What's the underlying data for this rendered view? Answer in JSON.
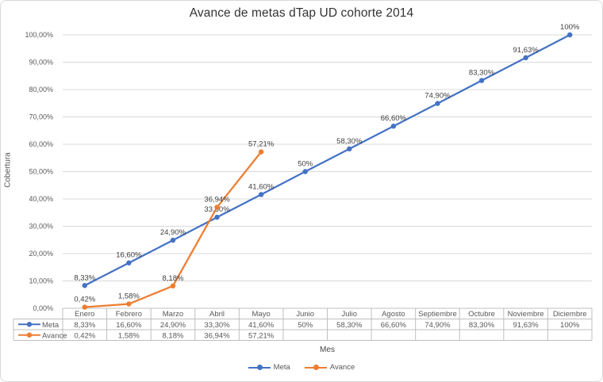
{
  "chart_data": {
    "type": "line",
    "title": "Avance de metas dTap UD cohorte 2014",
    "xlabel": "Mes",
    "ylabel": "Cobertura",
    "ylim": [
      0,
      100
    ],
    "ytick_step": 10,
    "ytick_labels": [
      "0,00%",
      "10,00%",
      "20,00%",
      "30,00%",
      "40,00%",
      "50,00%",
      "60,00%",
      "70,00%",
      "80,00%",
      "90,00%",
      "100,00%"
    ],
    "grid": true,
    "legend_position": "bottom",
    "data_table_shown": true,
    "categories": [
      "Enero",
      "Febrero",
      "Marzo",
      "Abril",
      "Mayo",
      "Junio",
      "Julio",
      "Agosto",
      "Septiembre",
      "Octubre",
      "Noviembre",
      "Diciembre"
    ],
    "series": [
      {
        "name": "Meta",
        "color": "#4472C4",
        "values": [
          8.33,
          16.6,
          24.9,
          33.3,
          41.6,
          50,
          58.3,
          66.6,
          74.9,
          83.3,
          91.63,
          100
        ],
        "labels": [
          "8,33%",
          "16,60%",
          "24,90%",
          "33,30%",
          "41,60%",
          "50%",
          "58,30%",
          "66,60%",
          "74,90%",
          "83,30%",
          "91,63%",
          "100%"
        ]
      },
      {
        "name": "Avance",
        "color": "#ED7D31",
        "values": [
          0.42,
          1.58,
          8.18,
          36.94,
          57.21,
          null,
          null,
          null,
          null,
          null,
          null,
          null
        ],
        "labels": [
          "0,42%",
          "1,58%",
          "8,18%",
          "36,94%",
          "57,21%",
          "",
          "",
          "",
          "",
          "",
          "",
          ""
        ]
      }
    ]
  },
  "colors": {
    "gridline": "#d9d9d9",
    "table_border": "#bfbfbf",
    "axis_text": "#595959",
    "data_label_text": "#3f3f3f"
  }
}
